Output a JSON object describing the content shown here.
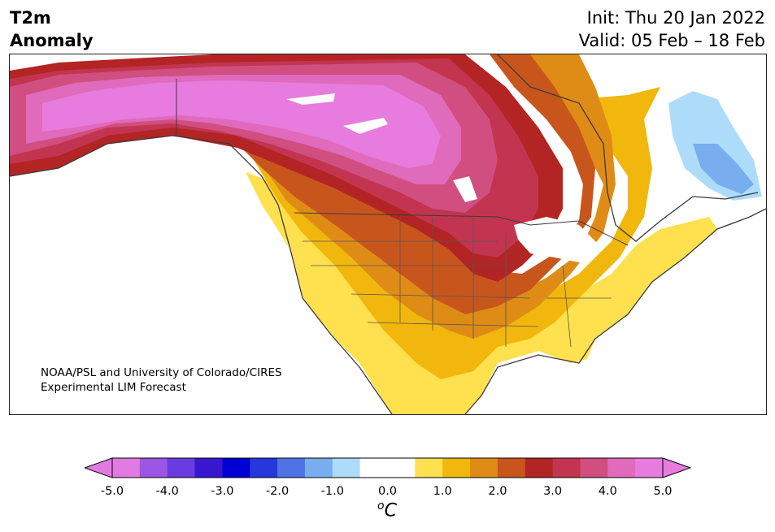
{
  "header": {
    "title_line1": "T2m",
    "title_line2": "Anomaly",
    "init": "Init: Thu 20 Jan 2022",
    "valid": "Valid: 05 Feb – 18 Feb"
  },
  "map": {
    "credit_line1": "NOAA/PSL and University of Colorado/CIRES",
    "credit_line2": "Experimental LIM Forecast"
  },
  "colorbar": {
    "ticks": [
      "-5.0",
      "-4.0",
      "-3.0",
      "-2.0",
      "-1.0",
      "0.0",
      "1.0",
      "2.0",
      "3.0",
      "4.0",
      "5.0"
    ],
    "unit_base": "C",
    "unit_sup": "o",
    "colors": [
      "#e27ae3",
      "#9d55e3",
      "#6a3be0",
      "#3718d0",
      "#0000d6",
      "#2438dc",
      "#4f72e6",
      "#78aef0",
      "#acdcfa",
      "#ffffff",
      "#ffffff",
      "#ffe04e",
      "#f1b70d",
      "#df8c17",
      "#c8561c",
      "#b32424",
      "#c33450",
      "#d04f80",
      "#e06abb",
      "#e77bde"
    ],
    "under_color": "#e27ae3",
    "over_color": "#e77bde"
  }
}
